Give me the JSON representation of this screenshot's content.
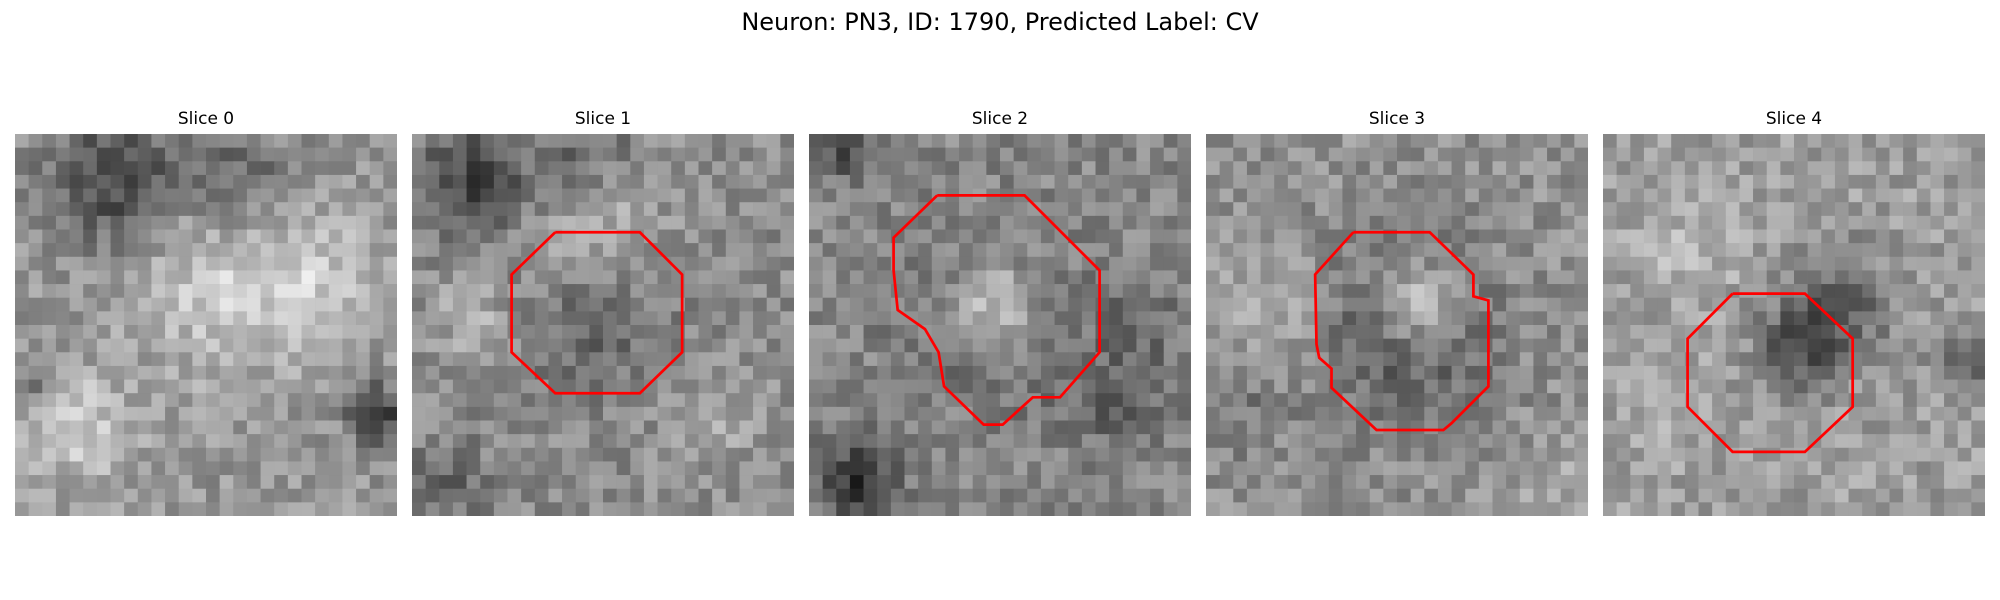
{
  "figure": {
    "title": "Neuron: PN3, ID: 1790, Predicted Label: CV",
    "outline_color": "#ff0000",
    "colormap": "grayscale"
  },
  "slices": [
    {
      "title": "Slice 0",
      "has_outline": false
    },
    {
      "title": "Slice 1",
      "has_outline": true
    },
    {
      "title": "Slice 2",
      "has_outline": true
    },
    {
      "title": "Slice 3",
      "has_outline": true
    },
    {
      "title": "Slice 4",
      "has_outline": true
    }
  ]
}
